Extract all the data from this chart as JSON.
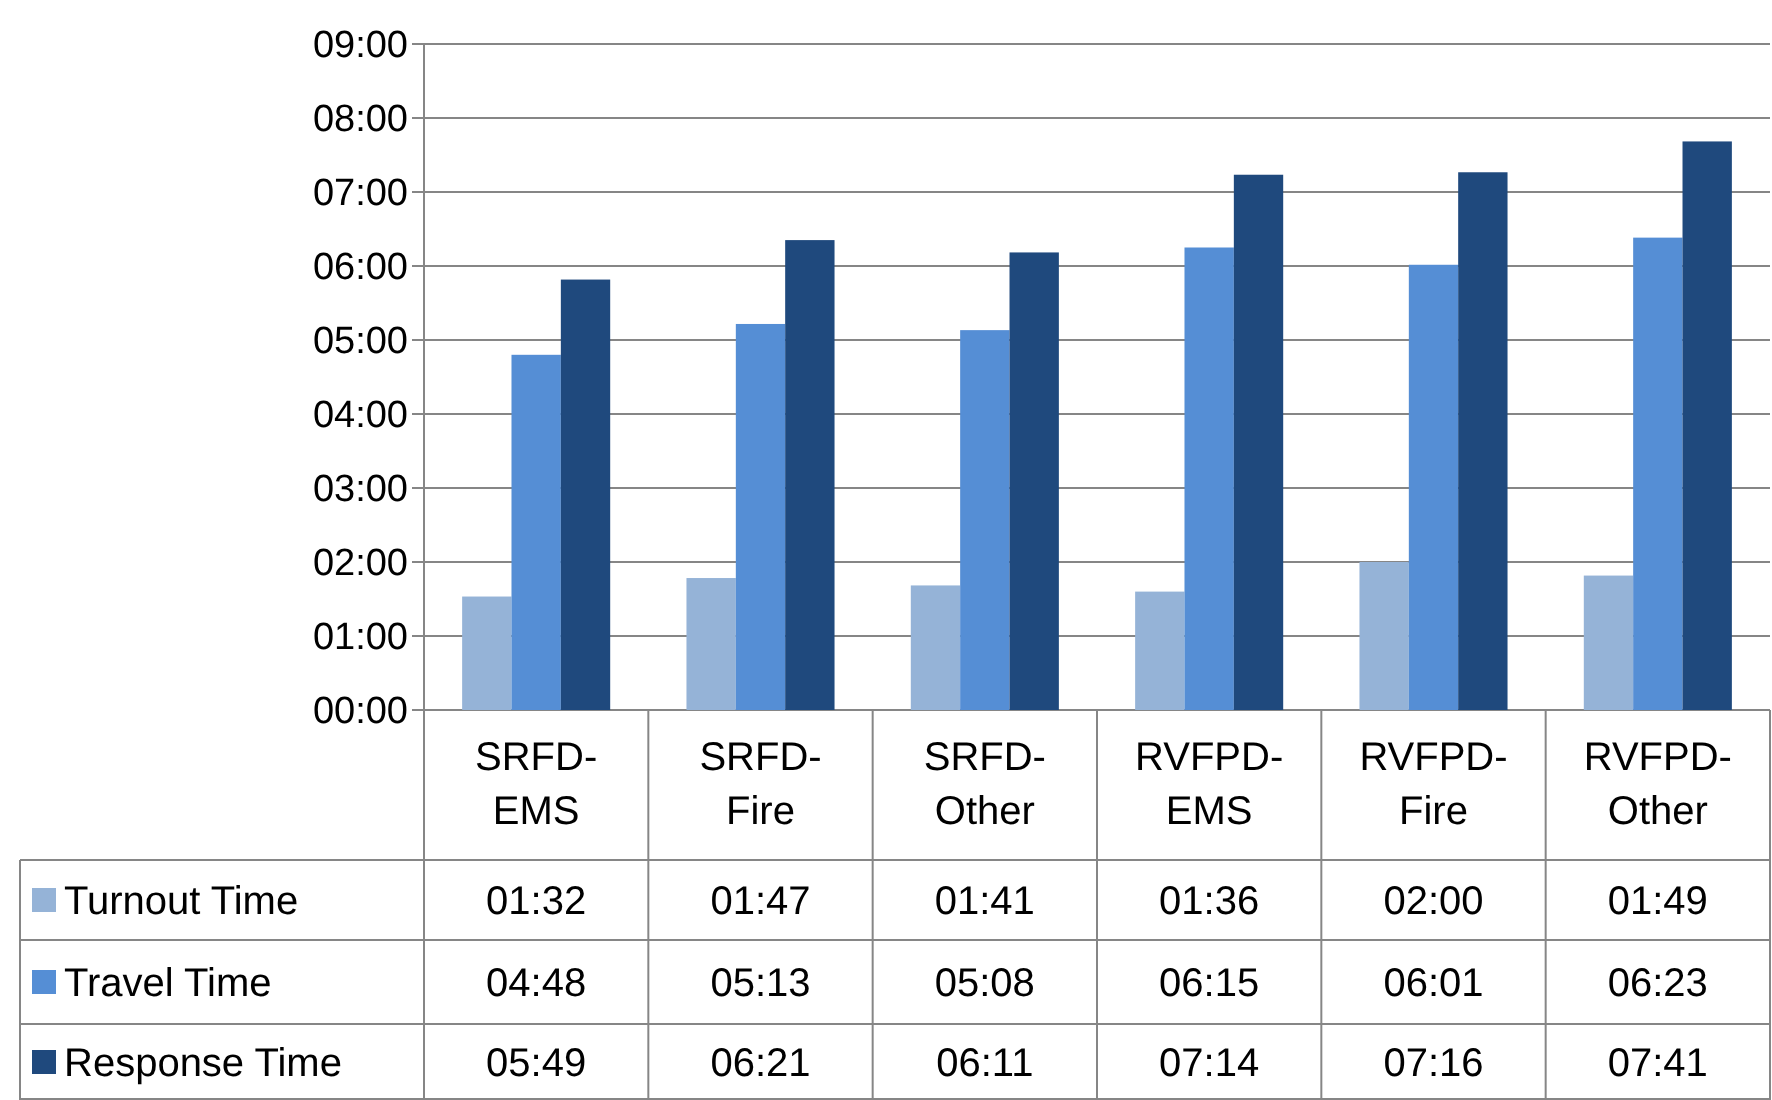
{
  "chart_data": {
    "type": "bar",
    "categories": [
      "SRFD-\nEMS",
      "SRFD-\nFire",
      "SRFD-\nOther",
      "RVFPD-\nEMS",
      "RVFPD-\nFire",
      "RVFPD-\nOther"
    ],
    "series": [
      {
        "name": "Turnout Time",
        "color": "#95b3d7",
        "values": [
          92,
          107,
          101,
          96,
          120,
          109
        ],
        "value_labels": [
          "01:32",
          "01:47",
          "01:41",
          "01:36",
          "02:00",
          "01:49"
        ]
      },
      {
        "name": "Travel Time",
        "color": "#558ed5",
        "values": [
          288,
          313,
          308,
          375,
          361,
          383
        ],
        "value_labels": [
          "04:48",
          "05:13",
          "05:08",
          "06:15",
          "06:01",
          "06:23"
        ]
      },
      {
        "name": "Response Time",
        "color": "#1f497d",
        "values": [
          349,
          381,
          371,
          434,
          436,
          461
        ],
        "value_labels": [
          "05:49",
          "06:21",
          "06:11",
          "07:14",
          "07:16",
          "07:41"
        ]
      }
    ],
    "ylim": [
      0,
      540
    ],
    "yticks": [
      {
        "value": 0,
        "label": "00:00"
      },
      {
        "value": 60,
        "label": "01:00"
      },
      {
        "value": 120,
        "label": "02:00"
      },
      {
        "value": 180,
        "label": "03:00"
      },
      {
        "value": 240,
        "label": "04:00"
      },
      {
        "value": 300,
        "label": "05:00"
      },
      {
        "value": 360,
        "label": "06:00"
      },
      {
        "value": 420,
        "label": "07:00"
      },
      {
        "value": 480,
        "label": "08:00"
      },
      {
        "value": 540,
        "label": "09:00"
      }
    ],
    "grid": "y",
    "legend": "bottom left"
  }
}
